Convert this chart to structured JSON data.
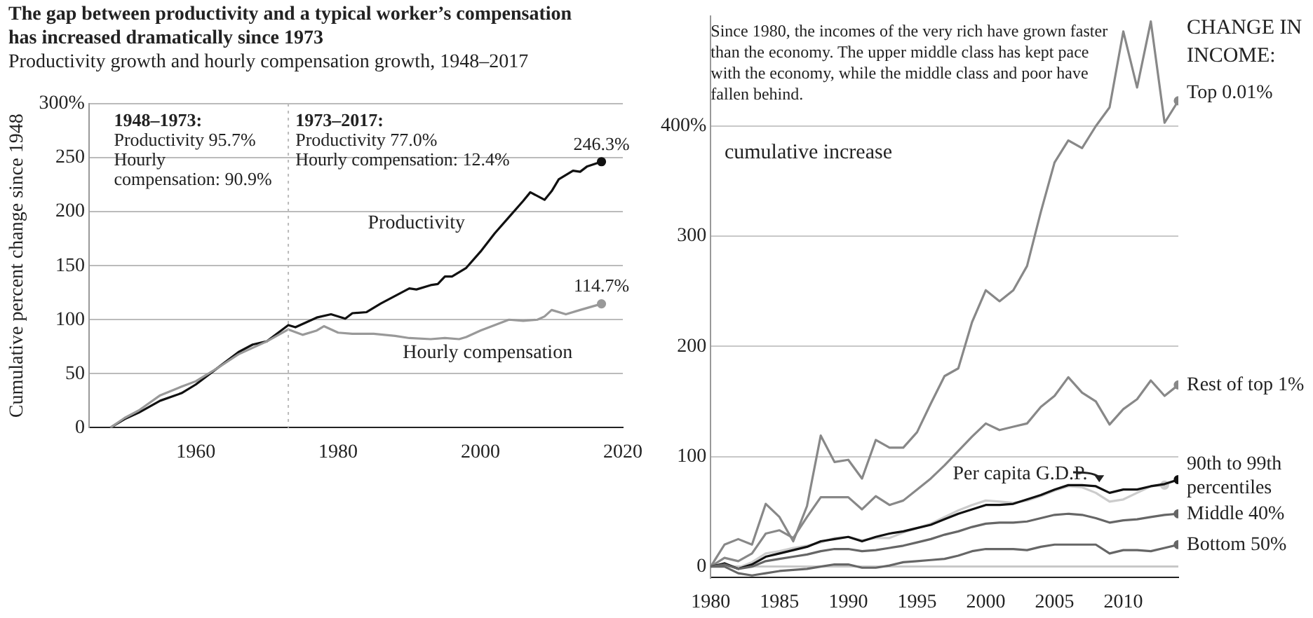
{
  "chart_data": [
    {
      "type": "line",
      "title": "The gap between productivity and a typical worker’s compensation has increased dramatically since 1973",
      "subtitle": "Productivity growth and hourly compensation growth, 1948–2017",
      "ylabel": "Cumulative percent change since 1948",
      "series": [
        {
          "name": "Productivity",
          "color": "#111111",
          "x": [
            1948,
            1950,
            1952,
            1955,
            1958,
            1960,
            1963,
            1966,
            1968,
            1970,
            1973,
            1974,
            1977,
            1979,
            1981,
            1982,
            1984,
            1986,
            1988,
            1990,
            1991,
            1993,
            1994,
            1995,
            1996,
            1998,
            2000,
            2002,
            2004,
            2006,
            2007,
            2009,
            2010,
            2011,
            2013,
            2014,
            2015,
            2017
          ],
          "values": [
            0,
            8,
            14,
            25,
            32,
            40,
            55,
            70,
            77,
            80,
            95,
            93,
            102,
            105,
            101,
            106,
            107,
            115,
            122,
            129,
            128,
            132,
            133,
            140,
            140,
            148,
            163,
            180,
            195,
            210,
            218,
            211,
            219,
            230,
            238,
            237,
            242,
            246.3
          ],
          "value_labels": [
            null,
            null,
            null,
            null,
            null,
            null,
            null,
            null,
            null,
            null,
            null,
            null,
            null,
            null,
            null,
            null,
            null,
            null,
            null,
            null,
            null,
            null,
            null,
            null,
            null,
            null,
            null,
            null,
            null,
            null,
            null,
            null,
            null,
            null,
            null,
            null,
            null,
            "246.3%"
          ]
        },
        {
          "name": "Hourly compensation",
          "color": "#999999",
          "x": [
            1948,
            1950,
            1952,
            1955,
            1958,
            1960,
            1963,
            1966,
            1968,
            1970,
            1973,
            1975,
            1977,
            1978,
            1980,
            1982,
            1985,
            1988,
            1990,
            1993,
            1995,
            1997,
            1998,
            2000,
            2002,
            2004,
            2006,
            2008,
            2009,
            2010,
            2012,
            2014,
            2017
          ],
          "values": [
            0,
            9,
            16,
            30,
            38,
            43,
            55,
            68,
            74,
            80,
            91,
            86,
            90,
            94,
            88,
            87,
            87,
            85,
            83,
            82,
            83,
            82,
            84,
            90,
            95,
            100,
            99,
            100,
            103,
            109,
            105,
            109,
            114.7
          ],
          "value_labels": [
            null,
            null,
            null,
            null,
            null,
            null,
            null,
            null,
            null,
            null,
            null,
            null,
            null,
            null,
            null,
            null,
            null,
            null,
            null,
            null,
            null,
            null,
            null,
            null,
            null,
            null,
            null,
            null,
            null,
            null,
            null,
            null,
            "114.7%"
          ]
        }
      ],
      "xlim": [
        1945,
        2020
      ],
      "xticks": [
        1960,
        1980,
        2000,
        2020
      ],
      "ylim": [
        0,
        300
      ],
      "yticks": [
        0,
        50,
        100,
        150,
        200,
        250,
        {
          "value": 300,
          "label": "300%"
        }
      ],
      "grid": "y",
      "ref_lines": [
        {
          "axis": "x",
          "value": 1973,
          "color": "#bbbbbb",
          "line_style": "dotted"
        }
      ],
      "annotations": [
        "1948–1973:\nProductivity 95.7%\nHourly\ncompensation: 90.9%",
        "1973–2017:\nProductivity 77.0%\nHourly compensation: 12.4%"
      ]
    },
    {
      "type": "line",
      "x": [
        1980,
        1981,
        1982,
        1983,
        1984,
        1985,
        1986,
        1987,
        1988,
        1989,
        1990,
        1991,
        1992,
        1993,
        1994,
        1995,
        1996,
        1997,
        1998,
        1999,
        2000,
        2001,
        2002,
        2003,
        2004,
        2005,
        2006,
        2007,
        2008,
        2009,
        2010,
        2011,
        2012,
        2013,
        2014
      ],
      "series": [
        {
          "name": "Top 0.01%",
          "color": "#888888",
          "values": [
            0,
            20,
            25,
            20,
            57,
            45,
            23,
            55,
            119,
            95,
            97,
            80,
            115,
            108,
            108,
            122,
            148,
            173,
            180,
            222,
            251,
            241,
            251,
            273,
            322,
            367,
            387,
            380,
            400,
            417,
            486,
            435,
            495,
            403,
            423
          ]
        },
        {
          "name": "Rest of top 1%",
          "color": "#888888",
          "values": [
            0,
            8,
            5,
            12,
            30,
            33,
            26,
            45,
            63,
            63,
            63,
            52,
            64,
            56,
            60,
            70,
            80,
            92,
            105,
            118,
            130,
            124,
            127,
            130,
            145,
            155,
            172,
            158,
            150,
            129,
            143,
            152,
            169,
            155,
            165
          ]
        },
        {
          "name": "Per capita G.D.P.",
          "color": "#cccccc",
          "values": [
            0,
            2,
            -1,
            4,
            12,
            14,
            17,
            19,
            22,
            26,
            27,
            24,
            26,
            26,
            31,
            35,
            39,
            45,
            51,
            56,
            60,
            59,
            58,
            60,
            64,
            69,
            73,
            72,
            67,
            59,
            61,
            67,
            73,
            74,
            null
          ]
        },
        {
          "name": "90th to 99th percentiles",
          "color": "#111111",
          "values": [
            0,
            3,
            -2,
            2,
            9,
            12,
            15,
            18,
            23,
            25,
            27,
            23,
            27,
            30,
            32,
            35,
            38,
            43,
            48,
            52,
            56,
            56,
            57,
            61,
            65,
            70,
            74,
            74,
            73,
            67,
            70,
            70,
            73,
            75,
            79
          ]
        },
        {
          "name": "Middle 40%",
          "color": "#666666",
          "values": [
            0,
            2,
            -2,
            0,
            5,
            7,
            9,
            11,
            14,
            16,
            16,
            14,
            15,
            17,
            19,
            22,
            25,
            29,
            32,
            36,
            39,
            40,
            40,
            41,
            44,
            47,
            48,
            47,
            44,
            40,
            42,
            43,
            45,
            47,
            48
          ]
        },
        {
          "name": "Bottom 50%",
          "color": "#666666",
          "values": [
            0,
            0,
            -6,
            -8,
            -6,
            -4,
            -3,
            -2,
            0,
            2,
            2,
            -1,
            -1,
            1,
            4,
            5,
            6,
            7,
            10,
            14,
            16,
            16,
            16,
            15,
            18,
            20,
            20,
            20,
            20,
            12,
            15,
            15,
            14,
            17,
            20
          ]
        }
      ],
      "xlim": [
        1980,
        2014
      ],
      "xticks": [
        1980,
        1985,
        1990,
        1995,
        2000,
        2005,
        2010
      ],
      "ylim": [
        -10,
        500
      ],
      "yticks": [
        0,
        100,
        200,
        300,
        {
          "value": 400,
          "label": "400%"
        }
      ],
      "grid": "y",
      "annotations": [
        "Since 1980, the incomes of the very rich have grown faster than the economy. The upper middle class has kept pace with the economy, while the middle class and poor have fallen behind.",
        "cumulative increase",
        "CHANGE IN INCOME:"
      ]
    }
  ]
}
